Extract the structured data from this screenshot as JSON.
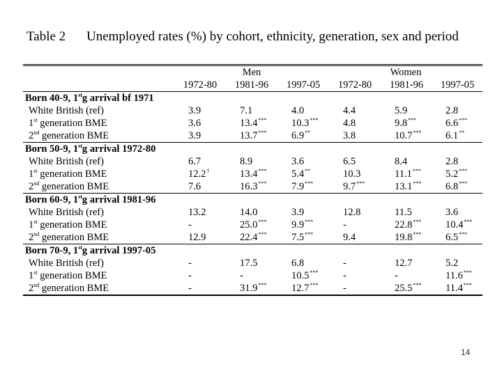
{
  "title": {
    "label": "Table 2",
    "text": "Unemployed rates (%) by cohort, ethnicity, generation, sex and period"
  },
  "header": {
    "men": "Men",
    "women": "Women",
    "periods": [
      "1972-80",
      "1981-96",
      "1997-05",
      "1972-80",
      "1981-96",
      "1997-05"
    ]
  },
  "groups": [
    {
      "label_a": "Born 40-9, 1",
      "label_sup": "st",
      "label_b": "g arrival bf 1971",
      "rows": [
        {
          "label": "White British (ref)",
          "gen": "",
          "values": [
            [
              "3.9",
              ""
            ],
            [
              "7.1",
              ""
            ],
            [
              "4.0",
              ""
            ],
            [
              "4.4",
              ""
            ],
            [
              "5.9",
              ""
            ],
            [
              "2.8",
              ""
            ]
          ]
        },
        {
          "label": " generation BME",
          "gen": "st",
          "gen_prefix": "1",
          "values": [
            [
              "3.6",
              ""
            ],
            [
              "13.4",
              "***"
            ],
            [
              "10.3",
              "***"
            ],
            [
              "4.8",
              ""
            ],
            [
              "9.8",
              "***"
            ],
            [
              "6.6",
              "***"
            ]
          ]
        },
        {
          "label": " generation BME",
          "gen": "nd",
          "gen_prefix": "2",
          "values": [
            [
              "3.9",
              ""
            ],
            [
              "13.7",
              "***"
            ],
            [
              "6.9",
              "**"
            ],
            [
              "3.8",
              ""
            ],
            [
              "10.7",
              "***"
            ],
            [
              "6.1",
              "**"
            ]
          ]
        }
      ]
    },
    {
      "label_a": "Born 50-9, 1",
      "label_sup": "st",
      "label_b": "g arrival 1972-80",
      "rows": [
        {
          "label": "White British (ref)",
          "gen": "",
          "values": [
            [
              "6.7",
              ""
            ],
            [
              "8.9",
              ""
            ],
            [
              "3.6",
              ""
            ],
            [
              "6.5",
              ""
            ],
            [
              "8.4",
              ""
            ],
            [
              "2.8",
              ""
            ]
          ]
        },
        {
          "label": " generation BME",
          "gen": "st",
          "gen_prefix": "1",
          "values": [
            [
              "12.2",
              "†"
            ],
            [
              "13.4",
              "***"
            ],
            [
              "5.4",
              "**"
            ],
            [
              "10.3",
              ""
            ],
            [
              "11.1",
              "***"
            ],
            [
              "5.2",
              "***"
            ]
          ]
        },
        {
          "label": " generation BME",
          "gen": "nd",
          "gen_prefix": "2",
          "values": [
            [
              "7.6",
              ""
            ],
            [
              "16.3",
              "***"
            ],
            [
              "7.9",
              "***"
            ],
            [
              "9.7",
              "***"
            ],
            [
              "13.1",
              "***"
            ],
            [
              "6.8",
              "***"
            ]
          ]
        }
      ]
    },
    {
      "label_a": "Born 60-9, 1",
      "label_sup": "st",
      "label_b": "g arrival 1981-96",
      "rows": [
        {
          "label": "White British (ref)",
          "gen": "",
          "values": [
            [
              "13.2",
              ""
            ],
            [
              "14.0",
              ""
            ],
            [
              "3.9",
              ""
            ],
            [
              "12.8",
              ""
            ],
            [
              "11.5",
              ""
            ],
            [
              "3.6",
              ""
            ]
          ]
        },
        {
          "label": " generation BME",
          "gen": "st",
          "gen_prefix": "1",
          "values": [
            [
              "-",
              ""
            ],
            [
              "25.0",
              "***"
            ],
            [
              "9.9",
              "***"
            ],
            [
              "-",
              ""
            ],
            [
              "22.8",
              "***"
            ],
            [
              "10.4",
              "***"
            ]
          ]
        },
        {
          "label": " generation BME",
          "gen": "nd",
          "gen_prefix": "2",
          "values": [
            [
              "12.9",
              ""
            ],
            [
              "22.4",
              "***"
            ],
            [
              "7.5",
              "***"
            ],
            [
              "9.4",
              ""
            ],
            [
              "19.8",
              "***"
            ],
            [
              "6.5",
              "***"
            ]
          ]
        }
      ]
    },
    {
      "label_a": "Born 70-9, 1",
      "label_sup": "st",
      "label_b": "g arrival 1997-05",
      "rows": [
        {
          "label": "White British (ref)",
          "gen": "",
          "values": [
            [
              "-",
              ""
            ],
            [
              "17.5",
              ""
            ],
            [
              "6.8",
              ""
            ],
            [
              "-",
              ""
            ],
            [
              "12.7",
              ""
            ],
            [
              "5.2",
              ""
            ]
          ]
        },
        {
          "label": " generation BME",
          "gen": "st",
          "gen_prefix": "1",
          "values": [
            [
              "-",
              ""
            ],
            [
              "-",
              ""
            ],
            [
              "10.5",
              "***"
            ],
            [
              "-",
              ""
            ],
            [
              "-",
              ""
            ],
            [
              "11.6",
              "***"
            ]
          ]
        },
        {
          "label": " generation BME",
          "gen": "nd",
          "gen_prefix": "2",
          "values": [
            [
              "-",
              ""
            ],
            [
              "31.9",
              "***"
            ],
            [
              "12.7",
              "***"
            ],
            [
              "-",
              ""
            ],
            [
              "25.5",
              "***"
            ],
            [
              "11.4",
              "***"
            ]
          ]
        }
      ]
    }
  ],
  "page_number": "14"
}
